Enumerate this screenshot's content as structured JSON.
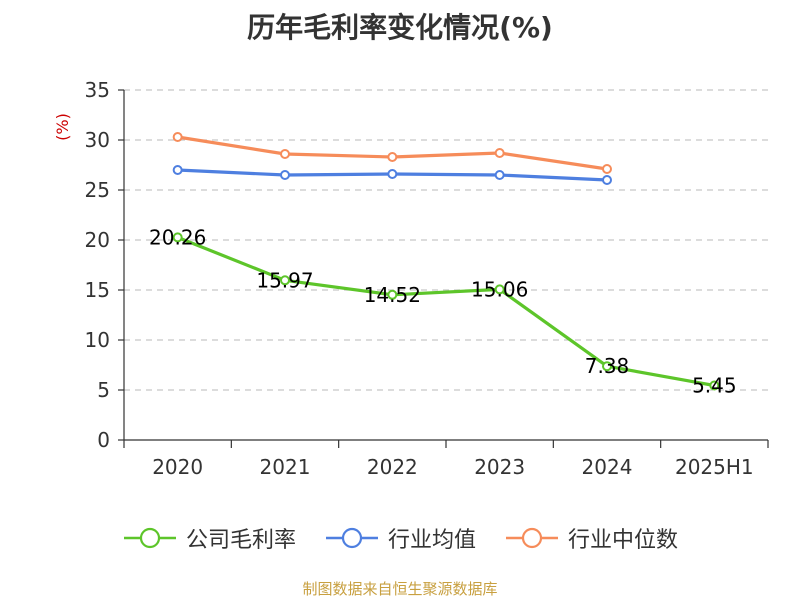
{
  "chart_data": {
    "type": "line",
    "title": "历年毛利率变化情况(%)",
    "ylabel": "(%)",
    "xlabel": "",
    "categories": [
      "2020",
      "2021",
      "2022",
      "2023",
      "2024",
      "2025H1"
    ],
    "ylim": [
      0,
      35
    ],
    "yticks": [
      0,
      5,
      10,
      15,
      20,
      25,
      30,
      35
    ],
    "grid": true,
    "legend_position": "bottom",
    "series": [
      {
        "name": "公司毛利率",
        "color": "#5dc52a",
        "values": [
          20.26,
          15.97,
          14.52,
          15.06,
          7.38,
          5.45
        ],
        "data_labels": [
          "20.26",
          "15.97",
          "14.52",
          "15.06",
          "7.38",
          "5.45"
        ]
      },
      {
        "name": "行业均值",
        "color": "#4e7fe0",
        "values": [
          27.0,
          26.5,
          26.6,
          26.5,
          26.0,
          null
        ]
      },
      {
        "name": "行业中位数",
        "color": "#f68c5a",
        "values": [
          30.3,
          28.6,
          28.3,
          28.7,
          27.1,
          null
        ]
      }
    ]
  },
  "source": "制图数据来自恒生聚源数据库"
}
